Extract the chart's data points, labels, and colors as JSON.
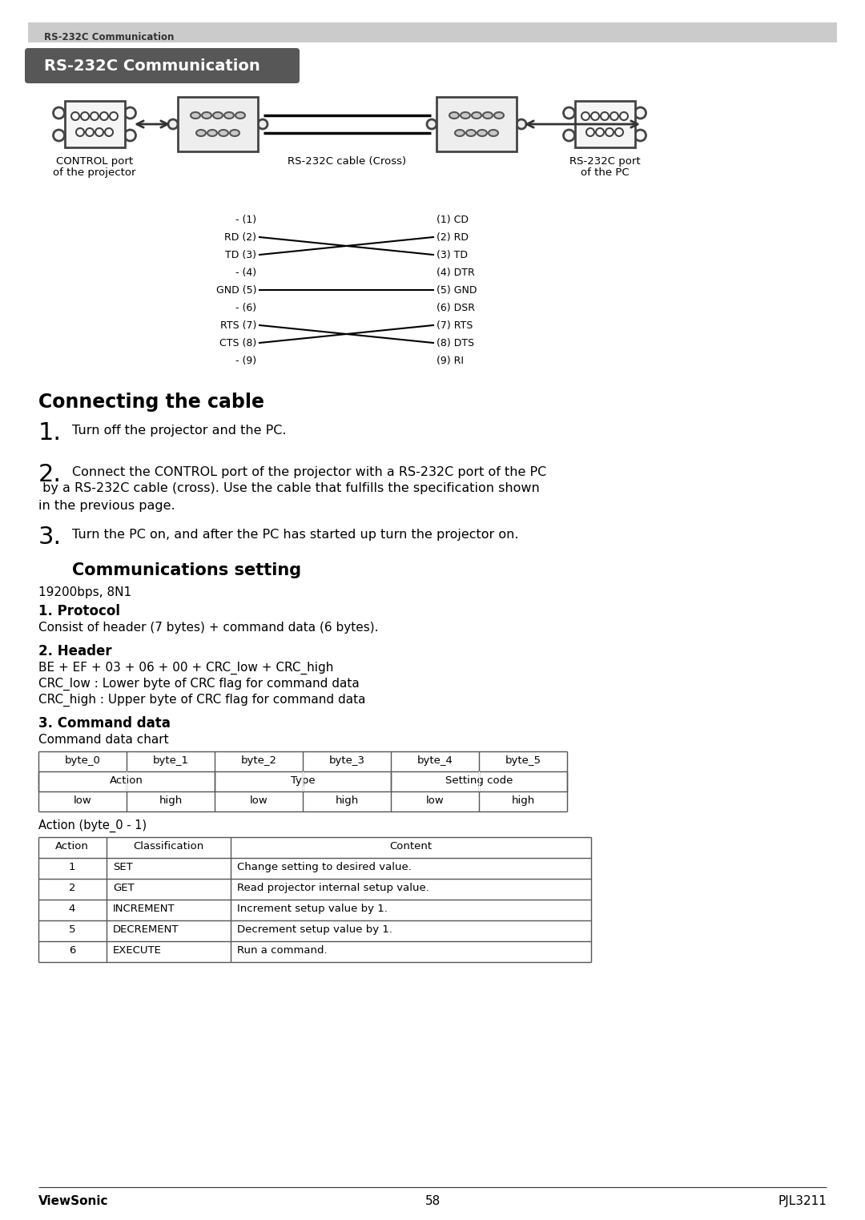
{
  "bg_color": "#ffffff",
  "top_bar_color": "#c8c8c8",
  "top_bar_text": "RS-232C Communication",
  "top_bar_text_color": "#444444",
  "title_box_color": "#555555",
  "title_box_text": "RS-232C Communication",
  "title_box_text_color": "#ffffff",
  "section_heading": "Connecting the cable",
  "comm_heading": "Communications setting",
  "comm_baud": "19200bps, 8N1",
  "protocol_heading": "1. Protocol",
  "protocol_text": "Consist of header (7 bytes) + command data (6 bytes).",
  "header_heading": "2. Header",
  "header_line1": "BE + EF + 03 + 06 + 00 + CRC_low + CRC_high",
  "header_line2": "CRC_low : Lower byte of CRC flag for command data",
  "header_line3": "CRC_high : Upper byte of CRC flag for command data",
  "cmd_heading": "3. Command data",
  "cmd_sub": "Command data chart",
  "step1_num": "1.",
  "step1_text": "Turn off the projector and the PC.",
  "step2_num": "2.",
  "step2_text_line1": "Connect the CONTROL port of the projector with a RS-232C port of the PC",
  "step2_text_line2": " by a RS-232C cable (cross). Use the cable that fulfills the specification shown",
  "step2_text_line3": "in the previous page.",
  "step3_num": "3.",
  "step3_text": "Turn the PC on, and after the PC has started up turn the projector on.",
  "control_label1": "CONTROL port",
  "control_label2": "of the projector",
  "cable_label": "RS-232C cable (Cross)",
  "rs232_label1": "RS-232C port",
  "rs232_label2": "of the PC",
  "pin_left": [
    "- (1)",
    "RD (2)",
    "TD (3)",
    "- (4)",
    "GND (5)",
    "- (6)",
    "RTS (7)",
    "CTS (8)",
    "- (9)"
  ],
  "pin_right": [
    "(1) CD",
    "(2) RD",
    "(3) TD",
    "(4) DTR",
    "(5) GND",
    "(6) DSR",
    "(7) RTS",
    "(8) DTS",
    "(9) RI"
  ],
  "table1_headers": [
    "byte_0",
    "byte_1",
    "byte_2",
    "byte_3",
    "byte_4",
    "byte_5"
  ],
  "table1_row1_labels": [
    [
      "Action",
      0,
      2
    ],
    [
      "Type",
      2,
      4
    ],
    [
      "Setting code",
      4,
      6
    ]
  ],
  "table1_row2": [
    "low",
    "high",
    "low",
    "high",
    "low",
    "high"
  ],
  "table2_headers": [
    "Action",
    "Classification",
    "Content"
  ],
  "table2_rows": [
    [
      "1",
      "SET",
      "Change setting to desired value."
    ],
    [
      "2",
      "GET",
      "Read projector internal setup value."
    ],
    [
      "4",
      "INCREMENT",
      "Increment setup value by 1."
    ],
    [
      "5",
      "DECREMENT",
      "Decrement setup value by 1."
    ],
    [
      "6",
      "EXECUTE",
      "Run a command."
    ]
  ],
  "action_note": "Action (byte_0 - 1)",
  "footer_left": "ViewSonic",
  "footer_center": "58",
  "footer_right": "PJL3211"
}
